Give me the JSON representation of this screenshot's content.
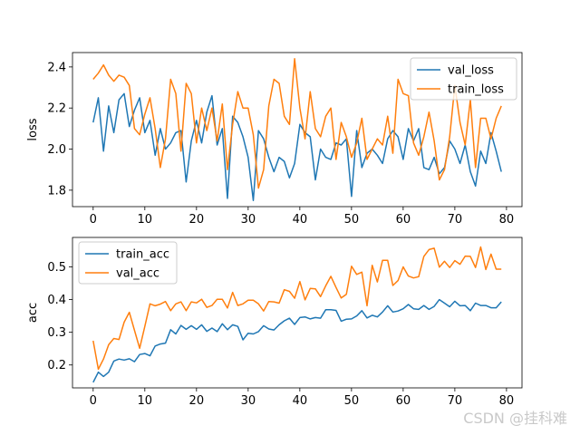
{
  "watermark": "CSDN @挂科难",
  "colors": {
    "blue": "#1f77b4",
    "orange": "#ff7f0e"
  },
  "chart_data": [
    {
      "type": "line",
      "title": "",
      "xlabel": "",
      "ylabel": "loss",
      "xlim": [
        -4,
        83
      ],
      "ylim": [
        1.72,
        2.47
      ],
      "xticks": [
        0,
        10,
        20,
        30,
        40,
        50,
        60,
        70,
        80
      ],
      "yticks": [
        1.8,
        2.0,
        2.2,
        2.4
      ],
      "ytick_labels": [
        "1.8",
        "2.0",
        "2.2",
        "2.4"
      ],
      "legend": "upper right",
      "series": [
        {
          "name": "val_loss",
          "color": "#1f77b4",
          "values": [
            2.13,
            2.25,
            1.99,
            2.21,
            2.08,
            2.24,
            2.27,
            2.11,
            2.19,
            2.25,
            2.08,
            2.14,
            1.97,
            2.1,
            2.0,
            2.03,
            2.08,
            2.09,
            1.84,
            2.04,
            2.14,
            2.03,
            2.18,
            2.26,
            2.02,
            2.1,
            1.76,
            2.16,
            2.13,
            2.06,
            1.96,
            1.75,
            2.09,
            2.05,
            1.96,
            1.89,
            1.96,
            1.94,
            1.86,
            1.93,
            2.12,
            2.08,
            2.06,
            1.85,
            2.0,
            1.96,
            1.95,
            2.03,
            2.02,
            2.05,
            1.77,
            2.09,
            1.91,
            1.98,
            2.0,
            1.97,
            1.93,
            2.05,
            2.09,
            2.06,
            1.95,
            2.1,
            2.04,
            2.1,
            1.91,
            1.9,
            1.96,
            1.88,
            1.91,
            2.04,
            2.0,
            1.93,
            2.02,
            1.89,
            1.82,
            1.99,
            1.93,
            2.08,
            1.99,
            1.89
          ]
        },
        {
          "name": "train_loss",
          "color": "#ff7f0e",
          "values": [
            2.34,
            2.37,
            2.41,
            2.36,
            2.33,
            2.36,
            2.35,
            2.31,
            2.1,
            2.07,
            2.17,
            2.25,
            2.1,
            1.91,
            2.05,
            2.34,
            2.27,
            1.99,
            2.32,
            2.27,
            2.03,
            2.2,
            2.09,
            2.2,
            2.04,
            2.22,
            1.9,
            2.12,
            2.28,
            2.2,
            2.2,
            2.07,
            1.81,
            1.9,
            2.21,
            2.34,
            2.32,
            2.16,
            2.12,
            2.44,
            2.2,
            2.05,
            2.28,
            2.1,
            2.06,
            2.16,
            2.2,
            1.95,
            2.13,
            2.06,
            1.96,
            2.03,
            2.15,
            1.95,
            2.0,
            2.05,
            2.02,
            2.16,
            1.98,
            2.34,
            2.27,
            2.26,
            2.03,
            1.97,
            2.06,
            2.18,
            2.04,
            1.85,
            1.9,
            2.06,
            2.31,
            2.13,
            2.02,
            2.24,
            1.91,
            2.15,
            2.15,
            2.05,
            2.15,
            2.21
          ]
        }
      ]
    },
    {
      "type": "line",
      "title": "",
      "xlabel": "",
      "ylabel": "acc",
      "xlim": [
        -4,
        83
      ],
      "ylim": [
        0.13,
        0.59
      ],
      "xticks": [
        0,
        10,
        20,
        30,
        40,
        50,
        60,
        70,
        80
      ],
      "yticks": [
        0.2,
        0.3,
        0.4,
        0.5
      ],
      "ytick_labels": [
        "0.2",
        "0.3",
        "0.4",
        "0.5"
      ],
      "legend": "upper left",
      "series": [
        {
          "name": "train_acc",
          "color": "#1f77b4",
          "values": [
            0.147,
            0.178,
            0.165,
            0.178,
            0.212,
            0.218,
            0.215,
            0.219,
            0.21,
            0.232,
            0.235,
            0.228,
            0.258,
            0.264,
            0.267,
            0.308,
            0.295,
            0.321,
            0.309,
            0.32,
            0.309,
            0.323,
            0.303,
            0.313,
            0.302,
            0.326,
            0.308,
            0.323,
            0.318,
            0.277,
            0.297,
            0.295,
            0.302,
            0.32,
            0.31,
            0.307,
            0.323,
            0.335,
            0.343,
            0.324,
            0.345,
            0.347,
            0.341,
            0.345,
            0.343,
            0.369,
            0.369,
            0.367,
            0.334,
            0.34,
            0.341,
            0.35,
            0.366,
            0.344,
            0.352,
            0.347,
            0.362,
            0.381,
            0.362,
            0.365,
            0.372,
            0.385,
            0.372,
            0.37,
            0.382,
            0.37,
            0.379,
            0.4,
            0.389,
            0.378,
            0.395,
            0.381,
            0.382,
            0.366,
            0.389,
            0.382,
            0.382,
            0.375,
            0.375,
            0.393
          ]
        },
        {
          "name": "val_acc",
          "color": "#ff7f0e",
          "values": [
            0.274,
            0.187,
            0.218,
            0.262,
            0.281,
            0.278,
            0.331,
            0.361,
            0.306,
            0.251,
            0.318,
            0.387,
            0.381,
            0.386,
            0.394,
            0.366,
            0.387,
            0.393,
            0.366,
            0.393,
            0.39,
            0.401,
            0.376,
            0.382,
            0.401,
            0.401,
            0.374,
            0.422,
            0.382,
            0.387,
            0.398,
            0.398,
            0.387,
            0.365,
            0.394,
            0.393,
            0.389,
            0.43,
            0.425,
            0.404,
            0.455,
            0.399,
            0.434,
            0.433,
            0.409,
            0.442,
            0.471,
            0.437,
            0.405,
            0.416,
            0.502,
            0.477,
            0.484,
            0.381,
            0.505,
            0.454,
            0.52,
            0.52,
            0.443,
            0.458,
            0.5,
            0.472,
            0.466,
            0.47,
            0.532,
            0.553,
            0.557,
            0.499,
            0.517,
            0.498,
            0.519,
            0.508,
            0.533,
            0.532,
            0.498,
            0.561,
            0.492,
            0.539,
            0.493,
            0.493
          ]
        }
      ]
    }
  ]
}
